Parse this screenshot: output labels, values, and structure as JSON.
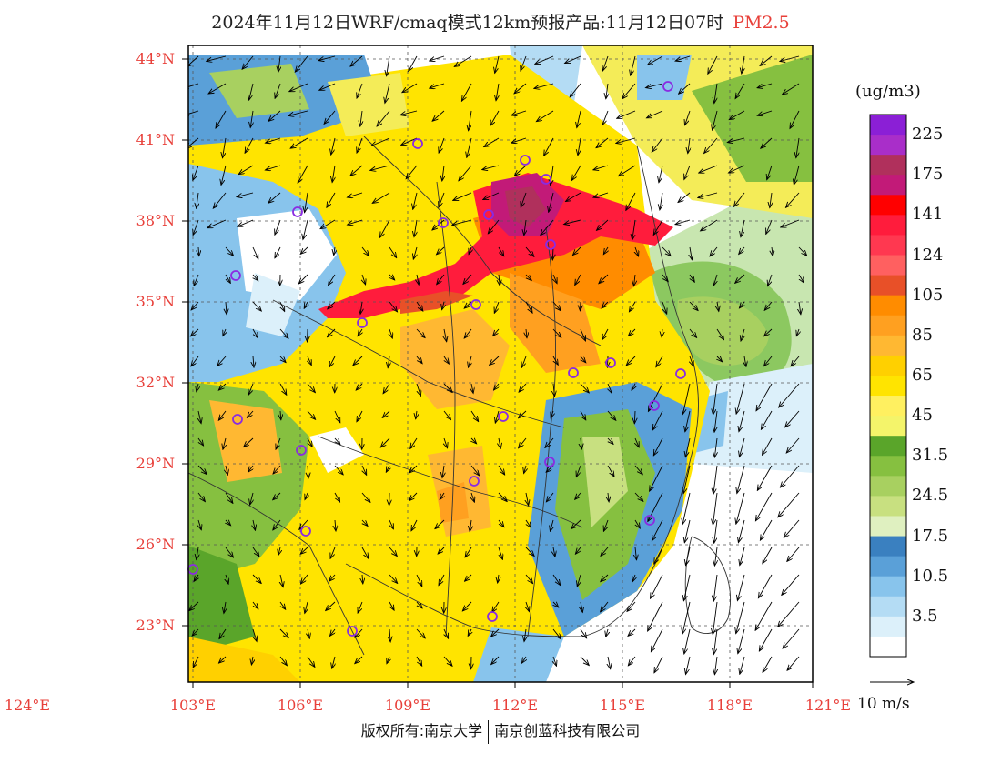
{
  "title": {
    "main": "2024年11月12日WRF/cmaq模式12km预报产品:11月12日07时",
    "pollutant": "PM2.5"
  },
  "map": {
    "lat_labels": [
      "44°N",
      "41°N",
      "38°N",
      "35°N",
      "32°N",
      "29°N",
      "26°N",
      "23°N"
    ],
    "lon_labels": [
      "103°E",
      "106°E",
      "109°E",
      "112°E",
      "115°E",
      "118°E",
      "121°E",
      "124°E"
    ],
    "colors": {
      "frame": "#000000",
      "axis_label": "#e8403a",
      "city_marker": "#8a2be2"
    }
  },
  "colorbar": {
    "unit": "(ug/m3)",
    "labels": [
      "225",
      "175",
      "141",
      "124",
      "105",
      "85",
      "65",
      "45",
      "31.5",
      "24.5",
      "17.5",
      "10.5",
      "3.5"
    ],
    "colors": [
      "#8b1fd6",
      "#a92ec9",
      "#b0305c",
      "#c21a78",
      "#ff0000",
      "#ff1c3c",
      "#ff3850",
      "#ff6060",
      "#e85028",
      "#ff8c00",
      "#ffa020",
      "#ffb832",
      "#ffd000",
      "#ffe400",
      "#fff060",
      "#f4f46a",
      "#5aa52a",
      "#86c040",
      "#a8d060",
      "#c8e080",
      "#dff0c0",
      "#3a80c0",
      "#5aa0d8",
      "#88c4ec",
      "#b4dcf4",
      "#dcf0fa",
      "#ffffff"
    ]
  },
  "wind": {
    "reference_label": "10 m/s"
  },
  "footer": {
    "left": "版权所有:南京大学",
    "right": "南京创蓝科技有限公司"
  }
}
